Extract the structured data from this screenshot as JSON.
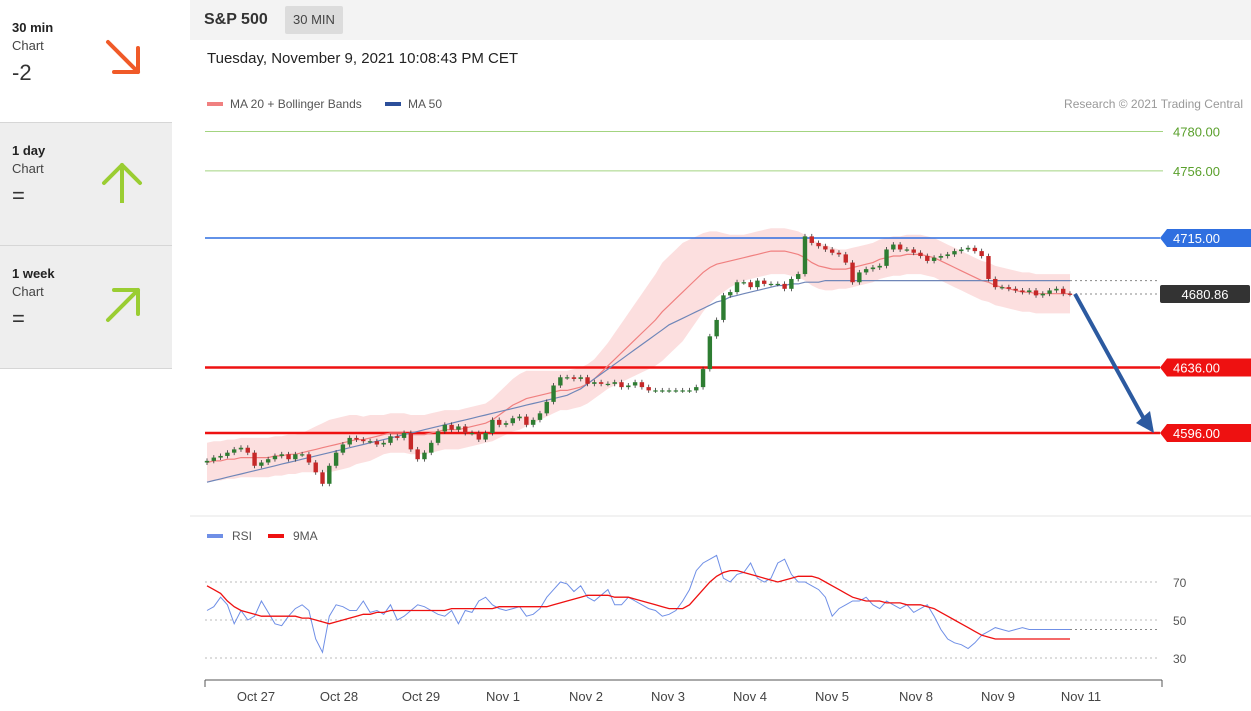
{
  "sidebar": [
    {
      "name": "30 min",
      "sub": "Chart",
      "score": "-2",
      "arrow": "down-right",
      "color": "#f05a28"
    },
    {
      "name": "1 day",
      "sub": "Chart",
      "score": "=",
      "arrow": "up",
      "color": "#9acd32"
    },
    {
      "name": "1 week",
      "sub": "Chart",
      "score": "=",
      "arrow": "up-right",
      "color": "#9acd32"
    }
  ],
  "header": {
    "symbol": "S&P 500",
    "period": "30 MIN"
  },
  "datetime": "Tuesday, November 9, 2021 10:08:43 PM CET",
  "legend": {
    "ma20": "MA 20 + Bollinger Bands",
    "ma50": "MA 50",
    "copyright": "Research © 2021 Trading Central"
  },
  "rsi_legend": {
    "rsi": "RSI",
    "ma9": "9MA"
  },
  "chart_data": [
    {
      "type": "line",
      "title": "S&P 500",
      "x_ticks": [
        "Oct 27",
        "Oct 28",
        "Oct 29",
        "Nov 1",
        "Nov 2",
        "Nov 3",
        "Nov 4",
        "Nov 5",
        "Nov 8",
        "Nov 9",
        "Nov 11"
      ],
      "levels": [
        {
          "label": "4780.00",
          "value": 4780.0,
          "color": "#7cc24a",
          "kind": "target"
        },
        {
          "label": "4756.00",
          "value": 4756.0,
          "color": "#7cc24a",
          "kind": "target"
        },
        {
          "label": "4715.00",
          "value": 4715.0,
          "color": "#2f6fe0",
          "kind": "pivot"
        },
        {
          "label": "4680.86",
          "value": 4680.86,
          "color": "#333333",
          "kind": "last"
        },
        {
          "label": "4636.00",
          "value": 4636.0,
          "color": "#ee1111",
          "kind": "support"
        },
        {
          "label": "4596.00",
          "value": 4596.0,
          "color": "#ee1111",
          "kind": "support"
        }
      ],
      "close": [
        4579,
        4581,
        4582,
        4584,
        4586,
        4587,
        4584,
        4576,
        4578,
        4580,
        4582,
        4583,
        4580,
        4583,
        4583,
        4578,
        4572,
        4565,
        4576,
        4584,
        4589,
        4593,
        4592,
        4591,
        4591,
        4589,
        4590,
        4594,
        4593,
        4596,
        4586,
        4580,
        4584,
        4590,
        4597,
        4601,
        4598,
        4600,
        4596,
        4596,
        4592,
        4596,
        4604,
        4601,
        4602,
        4605,
        4606,
        4601,
        4604,
        4608,
        4615,
        4625,
        4630,
        4630,
        4629,
        4630,
        4626,
        4627,
        4626,
        4626,
        4627,
        4624,
        4625,
        4627,
        4624,
        4622,
        4622,
        4622,
        4622,
        4622,
        4622,
        4622,
        4624,
        4635,
        4655,
        4665,
        4680,
        4682,
        4688,
        4688,
        4685,
        4689,
        4687,
        4687,
        4687,
        4684,
        4690,
        4693,
        4716,
        4712,
        4710,
        4708,
        4706,
        4705,
        4700,
        4688,
        4694,
        4696,
        4697,
        4698,
        4708,
        4711,
        4708,
        4708,
        4706,
        4704,
        4701,
        4703,
        4704,
        4705,
        4707,
        4708,
        4709,
        4707,
        4704,
        4690,
        4685,
        4685,
        4684,
        4683,
        4682,
        4683,
        4680,
        4681,
        4683,
        4684,
        4681,
        4680.86
      ],
      "ma20": [
        4578,
        4579,
        4579,
        4580,
        4580,
        4581,
        4581,
        4581,
        4581,
        4581,
        4582,
        4582,
        4583,
        4583,
        4584,
        4585,
        4586,
        4587,
        4588,
        4589,
        4590,
        4591,
        4592,
        4592,
        4593,
        4594,
        4595,
        4596,
        4596,
        4596,
        4595,
        4595,
        4595,
        4596,
        4597,
        4598,
        4598,
        4598,
        4599,
        4600,
        4601,
        4602,
        4604,
        4607,
        4610,
        4613,
        4615,
        4617,
        4618,
        4619,
        4620,
        4621,
        4622,
        4622,
        4623,
        4624,
        4626,
        4629,
        4633,
        4637,
        4641,
        4645,
        4649,
        4653,
        4657,
        4661,
        4665,
        4670,
        4674,
        4678,
        4682,
        4686,
        4690,
        4694,
        4697,
        4699,
        4700,
        4701,
        4702,
        4703,
        4704,
        4705,
        4706,
        4707,
        4707,
        4707,
        4706,
        4705,
        4703,
        4700,
        4698,
        4697,
        4696,
        4696,
        4696,
        4697,
        4698,
        4699,
        4700,
        4702,
        4703,
        4704,
        4704,
        4705,
        4705,
        4705,
        4704,
        4703,
        4701,
        4699,
        4697,
        4695,
        4693,
        4691,
        4689,
        4688,
        4686,
        4685,
        4684,
        4683,
        4682,
        4682,
        4681,
        4681,
        4681,
        4681,
        4681,
        4681
      ],
      "ma50": [
        4566,
        4567,
        4568,
        4569,
        4570,
        4571,
        4572,
        4573,
        4574,
        4575,
        4576,
        4577,
        4578,
        4579,
        4580,
        4581,
        4582,
        4583,
        4584,
        4585,
        4586,
        4587,
        4588,
        4589,
        4590,
        4591,
        4592,
        4593,
        4594,
        4595,
        4596,
        4597,
        4598,
        4599,
        4600,
        4601,
        4602,
        4603,
        4604,
        4605,
        4606,
        4607,
        4608,
        4609,
        4610,
        4611,
        4612,
        4613,
        4614,
        4615,
        4616,
        4617,
        4618,
        4619,
        4621,
        4623,
        4626,
        4629,
        4632,
        4635,
        4638,
        4641,
        4644,
        4647,
        4650,
        4653,
        4656,
        4659,
        4662,
        4664,
        4666,
        4668,
        4670,
        4672,
        4674,
        4676,
        4677,
        4679,
        4680,
        4681,
        4682,
        4683,
        4684,
        4685,
        4686,
        4686,
        4687,
        4687,
        4688,
        4688,
        4688,
        4689,
        4689,
        4689,
        4689,
        4689,
        4689,
        4689,
        4689,
        4689,
        4689,
        4689,
        4689,
        4689,
        4689,
        4689,
        4689,
        4689,
        4689,
        4689,
        4689,
        4689,
        4689,
        4689,
        4689,
        4689,
        4689,
        4689,
        4689,
        4689,
        4689,
        4689,
        4689,
        4689,
        4689,
        4689,
        4689,
        4689
      ],
      "band_width": [
        12,
        12,
        12,
        12,
        12,
        12,
        12,
        12,
        12,
        12,
        12,
        12,
        12,
        12,
        12,
        13,
        14,
        15,
        16,
        16,
        16,
        16,
        15,
        14,
        14,
        13,
        12,
        12,
        12,
        12,
        12,
        12,
        12,
        12,
        12,
        12,
        12,
        12,
        12,
        12,
        12,
        12,
        13,
        14,
        15,
        16,
        17,
        17,
        16,
        15,
        14,
        13,
        12,
        12,
        12,
        12,
        12,
        12,
        13,
        14,
        16,
        18,
        20,
        22,
        24,
        26,
        28,
        30,
        30,
        30,
        30,
        28,
        26,
        24,
        22,
        20,
        18,
        16,
        15,
        14,
        14,
        14,
        14,
        14,
        14,
        14,
        14,
        14,
        14,
        14,
        14,
        14,
        13,
        12,
        12,
        12,
        12,
        12,
        12,
        12,
        12,
        12,
        12,
        12,
        12,
        12,
        12,
        12,
        12,
        12,
        12,
        12,
        12,
        12,
        12,
        12,
        12,
        12,
        12,
        12,
        12,
        12,
        12,
        12,
        12,
        12,
        12,
        12
      ],
      "projection": {
        "from": 4680.86,
        "to": 4596.0
      }
    },
    {
      "type": "line",
      "title": "RSI",
      "y_ticks": [
        70,
        50,
        30
      ],
      "ylim": [
        20,
        90
      ],
      "series": [
        {
          "name": "RSI",
          "color": "#6f8fe6",
          "values": [
            55,
            57,
            62,
            58,
            48,
            55,
            50,
            52,
            60,
            54,
            48,
            47,
            52,
            56,
            58,
            55,
            40,
            33,
            52,
            58,
            57,
            55,
            55,
            60,
            54,
            55,
            53,
            58,
            50,
            52,
            55,
            58,
            57,
            55,
            53,
            52,
            55,
            48,
            55,
            54,
            60,
            62,
            58,
            56,
            55,
            56,
            57,
            52,
            53,
            56,
            62,
            66,
            70,
            69,
            65,
            68,
            62,
            60,
            63,
            66,
            58,
            58,
            62,
            60,
            58,
            56,
            55,
            52,
            53,
            55,
            60,
            66,
            76,
            80,
            82,
            84,
            72,
            70,
            74,
            75,
            80,
            72,
            70,
            72,
            80,
            82,
            74,
            70,
            70,
            68,
            66,
            62,
            52,
            56,
            58,
            60,
            60,
            62,
            58,
            56,
            60,
            58,
            56,
            58,
            54,
            56,
            58,
            52,
            45,
            40,
            38,
            37,
            35,
            38,
            42,
            44,
            46,
            45,
            44,
            45,
            46,
            45,
            45,
            45,
            45,
            45,
            45,
            45
          ]
        },
        {
          "name": "9MA",
          "color": "#ee1111",
          "values": [
            68,
            66,
            64,
            60,
            57,
            55,
            54,
            53,
            52,
            52,
            52,
            52,
            52,
            52,
            51,
            51,
            50,
            49,
            48,
            49,
            50,
            51,
            52,
            53,
            53,
            54,
            54,
            55,
            55,
            55,
            55,
            55,
            55,
            55,
            55,
            55,
            56,
            56,
            56,
            56,
            56,
            56,
            56,
            57,
            57,
            57,
            57,
            57,
            57,
            57,
            57,
            58,
            59,
            60,
            61,
            62,
            63,
            63,
            63,
            63,
            62,
            62,
            62,
            61,
            60,
            59,
            58,
            57,
            56,
            56,
            56,
            58,
            62,
            66,
            70,
            73,
            75,
            76,
            76,
            75,
            74,
            73,
            72,
            71,
            70,
            71,
            72,
            73,
            73,
            73,
            72,
            70,
            68,
            66,
            64,
            62,
            61,
            60,
            60,
            60,
            59,
            59,
            59,
            58,
            58,
            58,
            57,
            56,
            54,
            52,
            50,
            48,
            46,
            44,
            42,
            41,
            40,
            40,
            40,
            40,
            40,
            40,
            40,
            40,
            40,
            40,
            40,
            40
          ]
        }
      ]
    }
  ]
}
